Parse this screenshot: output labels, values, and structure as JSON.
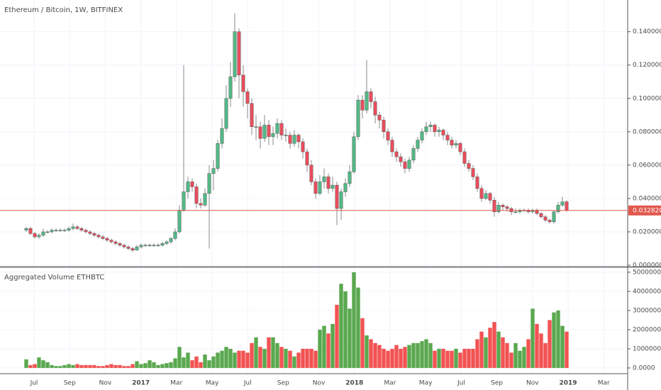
{
  "chart_data": {
    "type": "candlestick",
    "title": "Ethereum / Bitcoin, 1W, BITFINEX",
    "time_labels": [
      "Jul",
      "Sep",
      "Nov",
      "2017",
      "Mar",
      "May",
      "Jul",
      "Sep",
      "Nov",
      "2018",
      "Mar",
      "May",
      "Jul",
      "Sep",
      "Nov",
      "2019",
      "Mar"
    ],
    "up_color": "#53b987",
    "down_color": "#eb4d5c",
    "grid": true,
    "ylim": [
      0,
      0.159
    ],
    "yticks": [
      {
        "value": 0,
        "label": "0.000000"
      },
      {
        "value": 0.02,
        "label": "0.020000"
      },
      {
        "value": 0.04,
        "label": "0.040000"
      },
      {
        "value": 0.06,
        "label": "0.060000"
      },
      {
        "value": 0.08,
        "label": "0.080000"
      },
      {
        "value": 0.1,
        "label": "0.100000"
      },
      {
        "value": 0.12,
        "label": "0.120000"
      },
      {
        "value": 0.14,
        "label": "0.140000"
      }
    ],
    "last_price": {
      "value": 0.03282,
      "label": "0.032820"
    },
    "last_price_color": "#e2574c",
    "candles": [
      [
        0.021,
        0.023,
        0.02,
        0.022
      ],
      [
        0.022,
        0.023,
        0.018,
        0.019
      ],
      [
        0.019,
        0.02,
        0.016,
        0.017
      ],
      [
        0.017,
        0.019,
        0.016,
        0.018
      ],
      [
        0.018,
        0.022,
        0.017,
        0.02
      ],
      [
        0.02,
        0.021,
        0.019,
        0.02
      ],
      [
        0.02,
        0.022,
        0.019,
        0.021
      ],
      [
        0.021,
        0.022,
        0.02,
        0.021
      ],
      [
        0.021,
        0.022,
        0.02,
        0.021
      ],
      [
        0.021,
        0.022,
        0.02,
        0.021
      ],
      [
        0.021,
        0.023,
        0.02,
        0.022
      ],
      [
        0.022,
        0.025,
        0.021,
        0.023
      ],
      [
        0.023,
        0.024,
        0.021,
        0.022
      ],
      [
        0.022,
        0.023,
        0.02,
        0.021
      ],
      [
        0.021,
        0.022,
        0.019,
        0.02
      ],
      [
        0.02,
        0.021,
        0.018,
        0.019
      ],
      [
        0.019,
        0.02,
        0.017,
        0.018
      ],
      [
        0.018,
        0.019,
        0.016,
        0.017
      ],
      [
        0.017,
        0.018,
        0.015,
        0.016
      ],
      [
        0.016,
        0.017,
        0.014,
        0.015
      ],
      [
        0.015,
        0.016,
        0.013,
        0.014
      ],
      [
        0.014,
        0.015,
        0.012,
        0.013
      ],
      [
        0.013,
        0.014,
        0.011,
        0.012
      ],
      [
        0.012,
        0.013,
        0.01,
        0.011
      ],
      [
        0.011,
        0.012,
        0.009,
        0.01
      ],
      [
        0.01,
        0.011,
        0.008,
        0.009
      ],
      [
        0.009,
        0.012,
        0.009,
        0.011
      ],
      [
        0.011,
        0.013,
        0.01,
        0.012
      ],
      [
        0.012,
        0.013,
        0.011,
        0.012
      ],
      [
        0.012,
        0.013,
        0.011,
        0.012
      ],
      [
        0.012,
        0.013,
        0.011,
        0.012
      ],
      [
        0.012,
        0.013,
        0.011,
        0.012
      ],
      [
        0.012,
        0.014,
        0.011,
        0.013
      ],
      [
        0.013,
        0.015,
        0.012,
        0.014
      ],
      [
        0.014,
        0.017,
        0.013,
        0.016
      ],
      [
        0.016,
        0.022,
        0.015,
        0.02
      ],
      [
        0.02,
        0.036,
        0.019,
        0.033
      ],
      [
        0.033,
        0.12,
        0.032,
        0.044
      ],
      [
        0.044,
        0.053,
        0.04,
        0.05
      ],
      [
        0.05,
        0.052,
        0.044,
        0.047
      ],
      [
        0.047,
        0.049,
        0.034,
        0.037
      ],
      [
        0.037,
        0.04,
        0.034,
        0.036
      ],
      [
        0.036,
        0.046,
        0.035,
        0.043
      ],
      [
        0.043,
        0.06,
        0.01,
        0.055
      ],
      [
        0.055,
        0.063,
        0.045,
        0.058
      ],
      [
        0.058,
        0.075,
        0.056,
        0.073
      ],
      [
        0.073,
        0.088,
        0.07,
        0.082
      ],
      [
        0.082,
        0.108,
        0.08,
        0.1
      ],
      [
        0.1,
        0.122,
        0.095,
        0.113
      ],
      [
        0.113,
        0.151,
        0.11,
        0.14
      ],
      [
        0.14,
        0.142,
        0.1,
        0.114
      ],
      [
        0.114,
        0.12,
        0.095,
        0.104
      ],
      [
        0.104,
        0.106,
        0.088,
        0.097
      ],
      [
        0.097,
        0.1,
        0.078,
        0.083
      ],
      [
        0.083,
        0.09,
        0.075,
        0.083
      ],
      [
        0.083,
        0.086,
        0.07,
        0.076
      ],
      [
        0.076,
        0.09,
        0.074,
        0.084
      ],
      [
        0.084,
        0.087,
        0.072,
        0.077
      ],
      [
        0.077,
        0.083,
        0.072,
        0.079
      ],
      [
        0.079,
        0.088,
        0.076,
        0.085
      ],
      [
        0.085,
        0.087,
        0.075,
        0.078
      ],
      [
        0.078,
        0.082,
        0.074,
        0.078
      ],
      [
        0.078,
        0.08,
        0.07,
        0.073
      ],
      [
        0.073,
        0.081,
        0.071,
        0.078
      ],
      [
        0.078,
        0.079,
        0.07,
        0.074
      ],
      [
        0.074,
        0.076,
        0.064,
        0.068
      ],
      [
        0.068,
        0.07,
        0.056,
        0.06
      ],
      [
        0.06,
        0.063,
        0.048,
        0.05
      ],
      [
        0.05,
        0.052,
        0.04,
        0.043
      ],
      [
        0.043,
        0.054,
        0.042,
        0.05
      ],
      [
        0.05,
        0.058,
        0.046,
        0.053
      ],
      [
        0.053,
        0.055,
        0.043,
        0.046
      ],
      [
        0.046,
        0.053,
        0.044,
        0.048
      ],
      [
        0.048,
        0.05,
        0.024,
        0.034
      ],
      [
        0.034,
        0.046,
        0.027,
        0.044
      ],
      [
        0.044,
        0.052,
        0.041,
        0.049
      ],
      [
        0.049,
        0.06,
        0.047,
        0.056
      ],
      [
        0.056,
        0.08,
        0.055,
        0.077
      ],
      [
        0.077,
        0.102,
        0.075,
        0.099
      ],
      [
        0.099,
        0.102,
        0.088,
        0.093
      ],
      [
        0.093,
        0.123,
        0.091,
        0.104
      ],
      [
        0.104,
        0.106,
        0.094,
        0.098
      ],
      [
        0.098,
        0.101,
        0.085,
        0.09
      ],
      [
        0.09,
        0.092,
        0.082,
        0.087
      ],
      [
        0.087,
        0.089,
        0.076,
        0.08
      ],
      [
        0.08,
        0.082,
        0.072,
        0.075
      ],
      [
        0.075,
        0.077,
        0.065,
        0.068
      ],
      [
        0.068,
        0.07,
        0.062,
        0.065
      ],
      [
        0.065,
        0.067,
        0.059,
        0.062
      ],
      [
        0.062,
        0.064,
        0.055,
        0.058
      ],
      [
        0.058,
        0.065,
        0.056,
        0.063
      ],
      [
        0.063,
        0.072,
        0.061,
        0.07
      ],
      [
        0.07,
        0.077,
        0.068,
        0.075
      ],
      [
        0.075,
        0.082,
        0.073,
        0.08
      ],
      [
        0.08,
        0.086,
        0.078,
        0.083
      ],
      [
        0.083,
        0.086,
        0.08,
        0.084
      ],
      [
        0.084,
        0.085,
        0.077,
        0.08
      ],
      [
        0.08,
        0.083,
        0.077,
        0.081
      ],
      [
        0.081,
        0.082,
        0.075,
        0.078
      ],
      [
        0.078,
        0.08,
        0.072,
        0.075
      ],
      [
        0.075,
        0.077,
        0.07,
        0.072
      ],
      [
        0.072,
        0.075,
        0.07,
        0.073
      ],
      [
        0.073,
        0.074,
        0.066,
        0.068
      ],
      [
        0.068,
        0.07,
        0.059,
        0.061
      ],
      [
        0.061,
        0.063,
        0.056,
        0.058
      ],
      [
        0.058,
        0.06,
        0.051,
        0.053
      ],
      [
        0.053,
        0.055,
        0.044,
        0.046
      ],
      [
        0.046,
        0.048,
        0.038,
        0.04
      ],
      [
        0.04,
        0.045,
        0.039,
        0.043
      ],
      [
        0.043,
        0.044,
        0.037,
        0.039
      ],
      [
        0.039,
        0.041,
        0.029,
        0.032
      ],
      [
        0.032,
        0.038,
        0.031,
        0.036
      ],
      [
        0.036,
        0.037,
        0.033,
        0.035
      ],
      [
        0.035,
        0.036,
        0.032,
        0.034
      ],
      [
        0.034,
        0.035,
        0.03,
        0.032
      ],
      [
        0.032,
        0.034,
        0.031,
        0.032
      ],
      [
        0.032,
        0.034,
        0.031,
        0.033
      ],
      [
        0.033,
        0.034,
        0.032,
        0.033
      ],
      [
        0.033,
        0.034,
        0.031,
        0.032
      ],
      [
        0.032,
        0.034,
        0.031,
        0.033
      ],
      [
        0.033,
        0.034,
        0.03,
        0.031
      ],
      [
        0.031,
        0.032,
        0.028,
        0.029
      ],
      [
        0.029,
        0.03,
        0.026,
        0.027
      ],
      [
        0.027,
        0.028,
        0.025,
        0.026
      ],
      [
        0.026,
        0.033,
        0.025,
        0.032
      ],
      [
        0.032,
        0.038,
        0.031,
        0.036
      ],
      [
        0.036,
        0.041,
        0.035,
        0.038
      ],
      [
        0.038,
        0.039,
        0.032,
        0.03282
      ]
    ],
    "volume": {
      "type": "bar",
      "title": "Aggregated Volume ETHBTC",
      "up_color": "#5aa84f",
      "down_color": "#f25353",
      "ylim": [
        -300000,
        5220000
      ],
      "yticks": [
        {
          "value": 0,
          "label": "0.0000"
        },
        {
          "value": 1000000,
          "label": "1000000.0000"
        },
        {
          "value": 2000000,
          "label": "2000000.0000"
        },
        {
          "value": 3000000,
          "label": "3000000.0000"
        },
        {
          "value": 4000000,
          "label": "4000000.0000"
        },
        {
          "value": 5000000,
          "label": "5000000.0000"
        }
      ],
      "values": [
        450000,
        150000,
        200000,
        550000,
        400000,
        300000,
        150000,
        100000,
        100000,
        150000,
        200000,
        150000,
        200000,
        150000,
        150000,
        150000,
        150000,
        100000,
        100000,
        150000,
        200000,
        150000,
        150000,
        100000,
        100000,
        200000,
        350000,
        200000,
        250000,
        400000,
        300000,
        150000,
        200000,
        250000,
        300000,
        500000,
        1100000,
        550000,
        800000,
        400000,
        600000,
        300000,
        700000,
        400000,
        600000,
        800000,
        900000,
        1100000,
        1000000,
        800000,
        900000,
        900000,
        800000,
        1300000,
        1600000,
        1100000,
        1000000,
        1600000,
        1600000,
        1300000,
        1100000,
        1000000,
        900000,
        600000,
        800000,
        1000000,
        1000000,
        1000000,
        900000,
        2000000,
        2200000,
        1800000,
        2300000,
        3300000,
        4400000,
        4000000,
        3100000,
        5000000,
        4200000,
        2600000,
        1700000,
        1500000,
        1300000,
        1200000,
        1000000,
        900000,
        1000000,
        1200000,
        1000000,
        1100000,
        1200000,
        1300000,
        1300000,
        1400000,
        1500000,
        1300000,
        900000,
        1000000,
        1000000,
        900000,
        900000,
        1000000,
        800000,
        1000000,
        1000000,
        1000000,
        1500000,
        1900000,
        1600000,
        2100000,
        2400000,
        1900000,
        1600000,
        1300000,
        800000,
        1300000,
        900000,
        1100000,
        1500000,
        3100000,
        2300000,
        1800000,
        1300000,
        2500000,
        2900000,
        3000000,
        2200000,
        1900000
      ]
    }
  }
}
